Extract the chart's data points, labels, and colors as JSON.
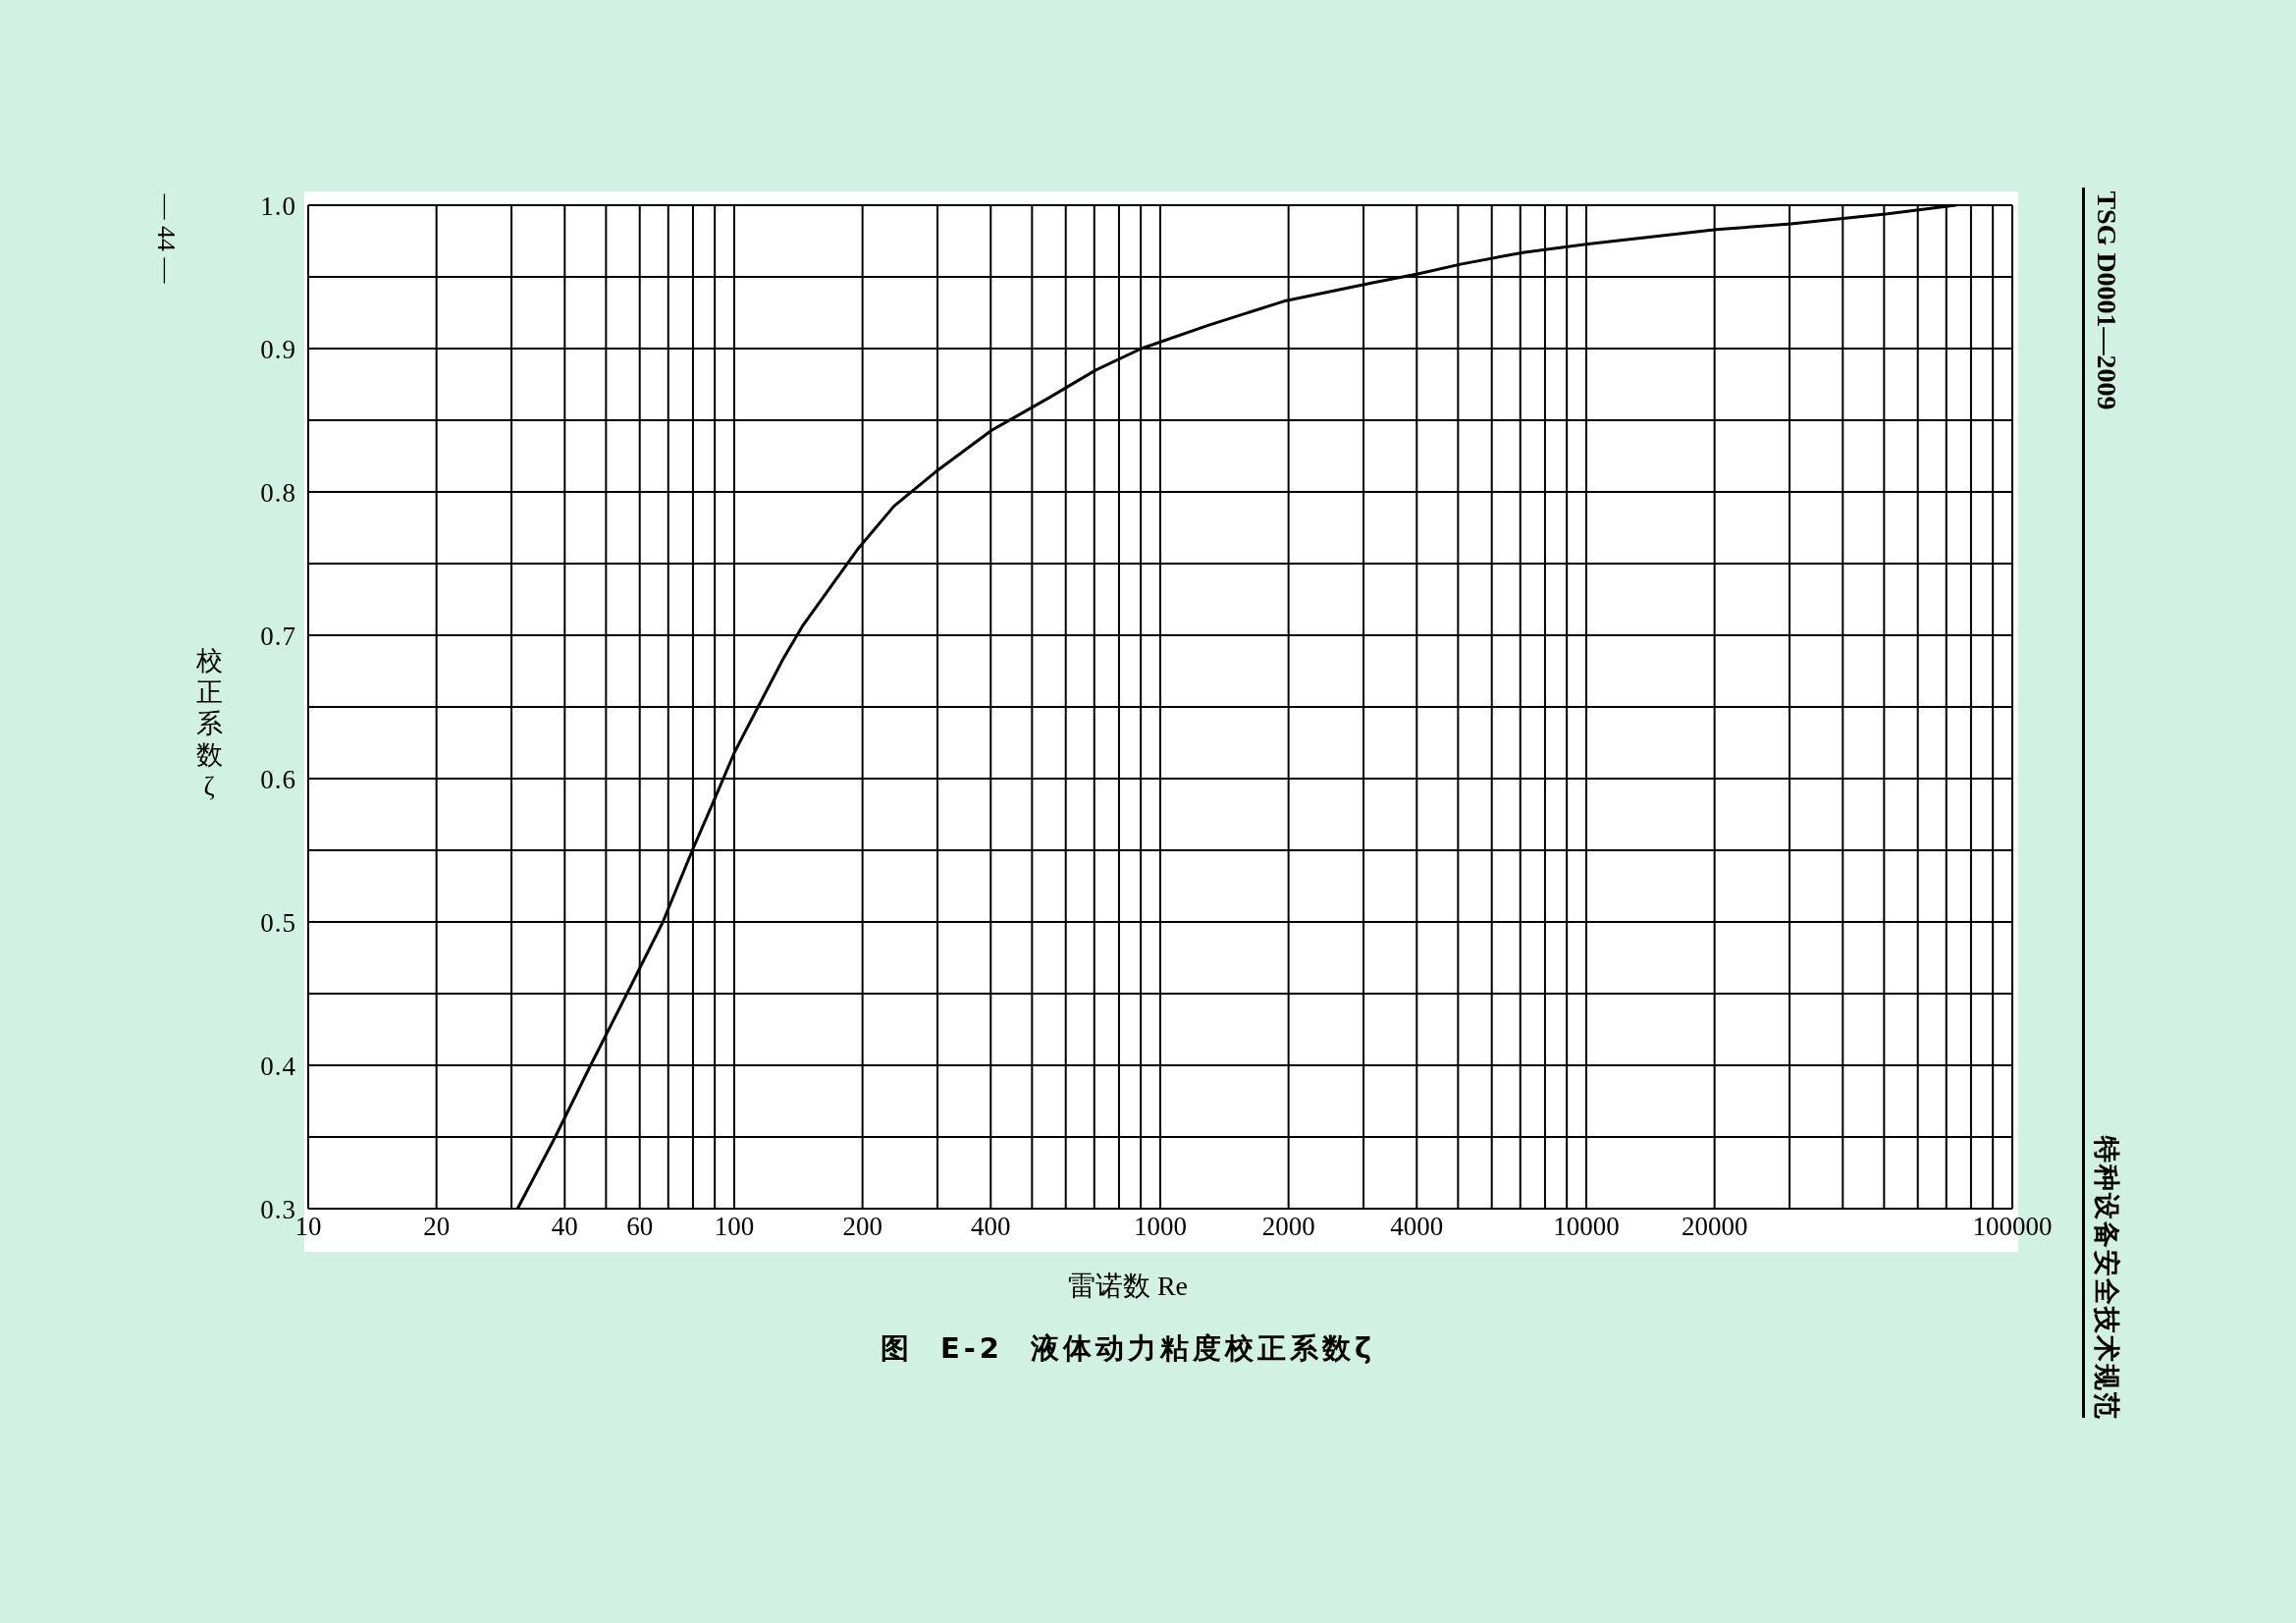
{
  "chart_data": {
    "type": "line",
    "title": "图 E-2 液体动力粘度校正系数ζ",
    "xlabel": "雷诺数 Re",
    "ylabel": "校正系数ζ",
    "annotations": [
      "— 44 —",
      "TSG D0001—2009",
      "特种设备安全技术规范"
    ],
    "x": [
      31,
      38,
      46,
      56,
      68,
      80,
      90,
      100,
      111,
      130,
      145,
      196,
      237,
      297,
      402,
      543,
      706,
      903,
      1290,
      1950,
      3170,
      4020,
      5100,
      7100,
      10100,
      20200,
      30200,
      51000,
      73600
    ],
    "values": [
      0.3,
      0.35,
      0.4,
      0.45,
      0.5,
      0.551,
      0.586,
      0.618,
      0.644,
      0.683,
      0.707,
      0.761,
      0.79,
      0.814,
      0.843,
      0.865,
      0.885,
      0.9,
      0.916,
      0.933,
      0.946,
      0.952,
      0.959,
      0.967,
      0.973,
      0.983,
      0.987,
      0.994,
      1.0
    ],
    "color": "#000000",
    "xlim": [
      10,
      100000
    ],
    "xticks": [
      10,
      20,
      {
        "value": 30,
        "label": null
      },
      40,
      {
        "value": 50,
        "label": null
      },
      60,
      {
        "value": 70,
        "label": null
      },
      {
        "value": 80,
        "label": null
      },
      {
        "value": 90,
        "label": null
      },
      100,
      200,
      {
        "value": 300,
        "label": null
      },
      400,
      {
        "value": 500,
        "label": null
      },
      {
        "value": 600,
        "label": null
      },
      {
        "value": 700,
        "label": null
      },
      {
        "value": 800,
        "label": null
      },
      {
        "value": 900,
        "label": null
      },
      1000,
      2000,
      {
        "value": 3000,
        "label": null
      },
      4000,
      {
        "value": 5000,
        "label": null
      },
      {
        "value": 6000,
        "label": null
      },
      {
        "value": 7000,
        "label": null
      },
      {
        "value": 8000,
        "label": null
      },
      {
        "value": 9000,
        "label": null
      },
      10000,
      20000,
      {
        "value": 30000,
        "label": null
      },
      {
        "value": 40000,
        "label": null
      },
      {
        "value": 50000,
        "label": null
      },
      {
        "value": 60000,
        "label": null
      },
      {
        "value": 70000,
        "label": null
      },
      {
        "value": 80000,
        "label": null
      },
      {
        "value": 90000,
        "label": null
      },
      100000
    ],
    "ylim": [
      0.3,
      1.0
    ],
    "yticks": [
      0.3,
      {
        "value": 0.35,
        "label": null
      },
      0.4,
      {
        "value": 0.45,
        "label": null
      },
      0.5,
      {
        "value": 0.55,
        "label": null
      },
      0.6,
      {
        "value": 0.65,
        "label": null
      },
      0.7,
      {
        "value": 0.75,
        "label": null
      },
      0.8,
      {
        "value": 0.85,
        "label": null
      },
      0.9,
      {
        "value": 0.95,
        "label": null
      },
      {
        "value": 1,
        "label": "1.0"
      }
    ],
    "log": "x",
    "grid": true
  }
}
